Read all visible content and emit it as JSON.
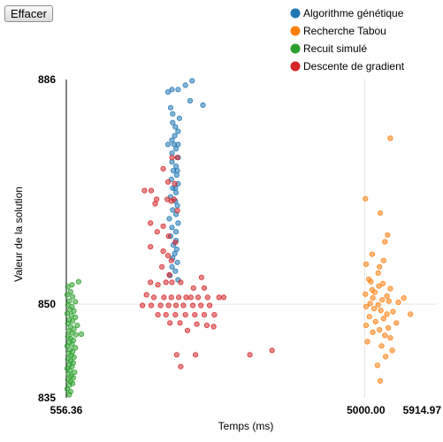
{
  "toolbar": {
    "clear_label": "Effacer"
  },
  "chart_data": {
    "type": "scatter",
    "xlabel": "Temps (ms)",
    "ylabel": "Valeur de la solution",
    "xlim": [
      556.36,
      5914.97
    ],
    "ylim": [
      835,
      886
    ],
    "x_ticks": [
      "556.36",
      "5000.00",
      "5914.97"
    ],
    "y_ticks": [
      "835",
      "850",
      "886"
    ],
    "legend_position": "top-right",
    "series": [
      {
        "name": "Algorithme génétique",
        "color": "#1f77b4",
        "points": [
          [
            2430,
            885.8
          ],
          [
            2330,
            885.1
          ],
          [
            2130,
            884.4
          ],
          [
            2220,
            884.4
          ],
          [
            2070,
            884.0
          ],
          [
            2400,
            882.6
          ],
          [
            2110,
            881.5
          ],
          [
            2140,
            880.5
          ],
          [
            2240,
            879.8
          ],
          [
            2140,
            879.1
          ],
          [
            2180,
            878.4
          ],
          [
            2220,
            877.7
          ],
          [
            2170,
            877.0
          ],
          [
            2130,
            876.3
          ],
          [
            2220,
            875.6
          ],
          [
            2070,
            875.6
          ],
          [
            2160,
            875.6
          ],
          [
            2190,
            874.9
          ],
          [
            2130,
            874.2
          ],
          [
            2220,
            873.5
          ],
          [
            2130,
            872.8
          ],
          [
            2190,
            872.1
          ],
          [
            2210,
            871.4
          ],
          [
            2150,
            871.4
          ],
          [
            2200,
            870.7
          ],
          [
            2120,
            870.0
          ],
          [
            2220,
            869.3
          ],
          [
            2180,
            868.6
          ],
          [
            2140,
            868.6
          ],
          [
            2190,
            867.9
          ],
          [
            2110,
            867.2
          ],
          [
            2180,
            866.5
          ],
          [
            2210,
            865.8
          ],
          [
            2140,
            865.1
          ],
          [
            2190,
            864.4
          ],
          [
            2090,
            863.7
          ],
          [
            2220,
            863.0
          ],
          [
            2130,
            862.3
          ],
          [
            2190,
            861.6
          ],
          [
            2110,
            860.9
          ],
          [
            2190,
            860.2
          ],
          [
            2150,
            859.5
          ],
          [
            2200,
            858.8
          ],
          [
            2170,
            858.1
          ],
          [
            2140,
            857.4
          ],
          [
            2210,
            856.7
          ],
          [
            2130,
            856.0
          ],
          [
            2180,
            855.3
          ],
          [
            2100,
            854.6
          ],
          [
            2220,
            853.9
          ],
          [
            2590,
            881.9
          ]
        ]
      },
      {
        "name": "Recherche Tabou",
        "color": "#ff7f0e",
        "points": [
          [
            5380,
            876.6
          ],
          [
            5010,
            866.9
          ],
          [
            5230,
            864.6
          ],
          [
            5340,
            861.1
          ],
          [
            5300,
            860.0
          ],
          [
            5110,
            858.0
          ],
          [
            5280,
            857.0
          ],
          [
            5020,
            856.4
          ],
          [
            5220,
            856.0
          ],
          [
            5200,
            855.0
          ],
          [
            5060,
            854.0
          ],
          [
            5090,
            853.6
          ],
          [
            5270,
            853.3
          ],
          [
            5210,
            852.9
          ],
          [
            5380,
            852.5
          ],
          [
            5110,
            852.3
          ],
          [
            5150,
            851.9
          ],
          [
            5010,
            851.6
          ],
          [
            5330,
            851.3
          ],
          [
            5580,
            851.0
          ],
          [
            5120,
            851.0
          ],
          [
            5260,
            850.7
          ],
          [
            5360,
            850.5
          ],
          [
            5500,
            850.3
          ],
          [
            5080,
            850.1
          ],
          [
            5200,
            849.9
          ],
          [
            5020,
            849.6
          ],
          [
            5140,
            849.3
          ],
          [
            5240,
            849.0
          ],
          [
            5420,
            848.8
          ],
          [
            5330,
            848.4
          ],
          [
            5680,
            848.4
          ],
          [
            5070,
            848.0
          ],
          [
            5280,
            847.7
          ],
          [
            5160,
            847.2
          ],
          [
            5470,
            847.0
          ],
          [
            5020,
            846.6
          ],
          [
            5350,
            846.2
          ],
          [
            5220,
            845.9
          ],
          [
            5120,
            845.5
          ],
          [
            5300,
            845.0
          ],
          [
            5380,
            844.6
          ],
          [
            5040,
            844.0
          ],
          [
            5250,
            843.3
          ],
          [
            5410,
            842.6
          ],
          [
            5310,
            841.6
          ],
          [
            5190,
            840.2
          ],
          [
            5230,
            837.7
          ]
        ]
      },
      {
        "name": "Recuit simulé",
        "color": "#2ca02c",
        "points": [
          [
            740,
            853.6
          ],
          [
            640,
            853.1
          ],
          [
            580,
            852.8
          ],
          [
            620,
            852.0
          ],
          [
            570,
            851.5
          ],
          [
            650,
            851.2
          ],
          [
            600,
            850.5
          ],
          [
            690,
            850.4
          ],
          [
            580,
            849.9
          ],
          [
            640,
            849.6
          ],
          [
            610,
            849.1
          ],
          [
            670,
            848.9
          ],
          [
            570,
            848.5
          ],
          [
            630,
            848.2
          ],
          [
            690,
            847.9
          ],
          [
            600,
            847.5
          ],
          [
            650,
            847.3
          ],
          [
            580,
            846.9
          ],
          [
            720,
            846.6
          ],
          [
            620,
            846.4
          ],
          [
            670,
            846.0
          ],
          [
            590,
            845.7
          ],
          [
            640,
            845.4
          ],
          [
            780,
            845.2
          ],
          [
            700,
            845.1
          ],
          [
            580,
            844.8
          ],
          [
            620,
            844.5
          ],
          [
            660,
            844.2
          ],
          [
            600,
            843.9
          ],
          [
            640,
            843.6
          ],
          [
            570,
            843.3
          ],
          [
            690,
            843.0
          ],
          [
            610,
            842.7
          ],
          [
            650,
            842.4
          ],
          [
            590,
            842.1
          ],
          [
            630,
            841.8
          ],
          [
            670,
            841.5
          ],
          [
            580,
            841.2
          ],
          [
            620,
            840.9
          ],
          [
            660,
            840.6
          ],
          [
            600,
            840.3
          ],
          [
            640,
            840.0
          ],
          [
            570,
            839.7
          ],
          [
            610,
            839.4
          ],
          [
            680,
            839.1
          ],
          [
            590,
            838.8
          ],
          [
            630,
            838.5
          ],
          [
            660,
            838.2
          ],
          [
            580,
            837.9
          ],
          [
            620,
            837.6
          ],
          [
            650,
            837.3
          ],
          [
            600,
            837.0
          ],
          [
            570,
            836.4
          ],
          [
            620,
            836.0
          ],
          [
            600,
            835.5
          ]
        ]
      },
      {
        "name": "Descente de gradient",
        "color": "#d62728",
        "points": [
          [
            2130,
            873.5
          ],
          [
            2210,
            873.5
          ],
          [
            2000,
            871.7
          ],
          [
            2070,
            869.6
          ],
          [
            2170,
            869.3
          ],
          [
            1720,
            868.2
          ],
          [
            1820,
            868.2
          ],
          [
            1900,
            866.8
          ],
          [
            2060,
            866.8
          ],
          [
            2120,
            866.5
          ],
          [
            2160,
            866.8
          ],
          [
            1880,
            866.1
          ],
          [
            2210,
            865.0
          ],
          [
            1810,
            863.0
          ],
          [
            2000,
            862.5
          ],
          [
            1910,
            861.6
          ],
          [
            2080,
            860.9
          ],
          [
            2180,
            859.9
          ],
          [
            1810,
            859.2
          ],
          [
            2000,
            858.5
          ],
          [
            2070,
            857.8
          ],
          [
            2120,
            857.0
          ],
          [
            1980,
            856.0
          ],
          [
            2090,
            854.7
          ],
          [
            2570,
            854.3
          ],
          [
            1810,
            853.5
          ],
          [
            2040,
            853.5
          ],
          [
            2130,
            853.5
          ],
          [
            2260,
            853.5
          ],
          [
            1920,
            853.1
          ],
          [
            2450,
            852.6
          ],
          [
            2610,
            852.6
          ],
          [
            1750,
            851.5
          ],
          [
            1860,
            851.1
          ],
          [
            2010,
            851.1
          ],
          [
            2120,
            851.1
          ],
          [
            2230,
            851.1
          ],
          [
            2340,
            851.1
          ],
          [
            2410,
            851.1
          ],
          [
            2520,
            851.1
          ],
          [
            2660,
            851.1
          ],
          [
            2830,
            851.1
          ],
          [
            2900,
            851.1
          ],
          [
            1690,
            849.8
          ],
          [
            1820,
            849.8
          ],
          [
            1960,
            849.8
          ],
          [
            2080,
            849.8
          ],
          [
            2190,
            849.8
          ],
          [
            2300,
            849.8
          ],
          [
            2440,
            849.8
          ],
          [
            2560,
            849.8
          ],
          [
            2690,
            849.8
          ],
          [
            1920,
            848.3
          ],
          [
            2040,
            848.3
          ],
          [
            2180,
            848.3
          ],
          [
            2330,
            848.3
          ],
          [
            2470,
            848.3
          ],
          [
            2610,
            848.3
          ],
          [
            2760,
            848.3
          ],
          [
            2100,
            847.0
          ],
          [
            2250,
            847.0
          ],
          [
            2500,
            846.8
          ],
          [
            2650,
            846.6
          ],
          [
            2750,
            846.4
          ],
          [
            2360,
            845.8
          ],
          [
            2200,
            841.9
          ],
          [
            2480,
            841.9
          ],
          [
            3290,
            841.9
          ],
          [
            3620,
            842.6
          ],
          [
            2260,
            840.0
          ]
        ]
      }
    ]
  }
}
